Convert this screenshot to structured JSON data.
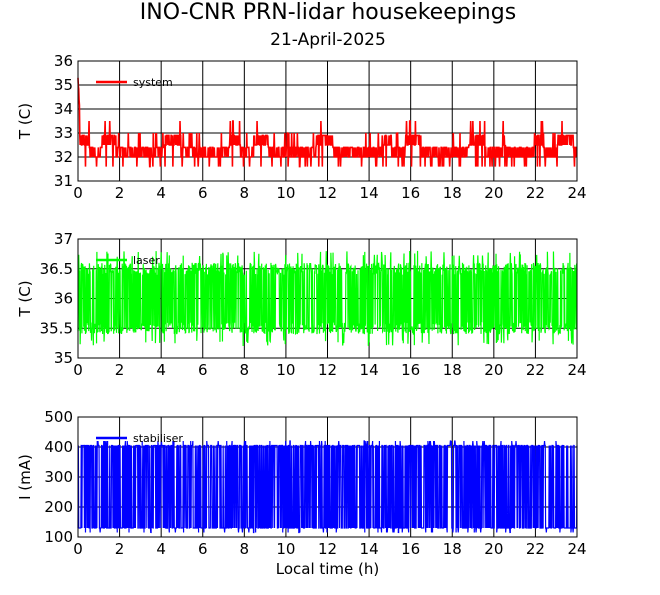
{
  "title": "INO-CNR PRN-lidar housekeepings",
  "subtitle": "21-April-2025",
  "chart_data": [
    {
      "type": "line",
      "ylabel": "T (C)",
      "xlabel": "",
      "xlim": [
        0,
        24
      ],
      "ylim": [
        31,
        36
      ],
      "xticks": [
        "0",
        "2",
        "4",
        "6",
        "8",
        "10",
        "12",
        "14",
        "16",
        "18",
        "20",
        "22",
        "24"
      ],
      "yticks": [
        "31",
        "32",
        "33",
        "34",
        "35",
        "36"
      ],
      "grid": true,
      "legend": "top-left",
      "series": [
        {
          "name": "system",
          "color": "#ff0000",
          "band_low": 31.6,
          "band_high": 33.6,
          "typical_low": 32.0,
          "typical_high": 32.8,
          "start_peak": 35.3
        }
      ]
    },
    {
      "type": "line",
      "ylabel": "T (C)",
      "xlabel": "",
      "xlim": [
        0,
        24
      ],
      "ylim": [
        35,
        37
      ],
      "xticks": [
        "0",
        "2",
        "4",
        "6",
        "8",
        "10",
        "12",
        "14",
        "16",
        "18",
        "20",
        "22",
        "24"
      ],
      "yticks": [
        "35",
        "35.5",
        "36",
        "36.5",
        "37"
      ],
      "grid": true,
      "legend": "top-left",
      "series": [
        {
          "name": "laser",
          "color": "#00ff00",
          "band_low": 35.2,
          "band_high": 36.8,
          "typical_low": 35.5,
          "typical_high": 36.5
        }
      ]
    },
    {
      "type": "line",
      "ylabel": "I (mA)",
      "xlabel": "Local time (h)",
      "xlim": [
        0,
        24
      ],
      "ylim": [
        100,
        500
      ],
      "xticks": [
        "0",
        "2",
        "4",
        "6",
        "8",
        "10",
        "12",
        "14",
        "16",
        "18",
        "20",
        "22",
        "24"
      ],
      "yticks": [
        "100",
        "200",
        "300",
        "400",
        "500"
      ],
      "grid": true,
      "legend": "top-left",
      "series": [
        {
          "name": "stabiliser",
          "color": "#0000ff",
          "band_low": 115,
          "band_high": 420,
          "typical_low": 130,
          "typical_high": 405
        }
      ]
    }
  ]
}
